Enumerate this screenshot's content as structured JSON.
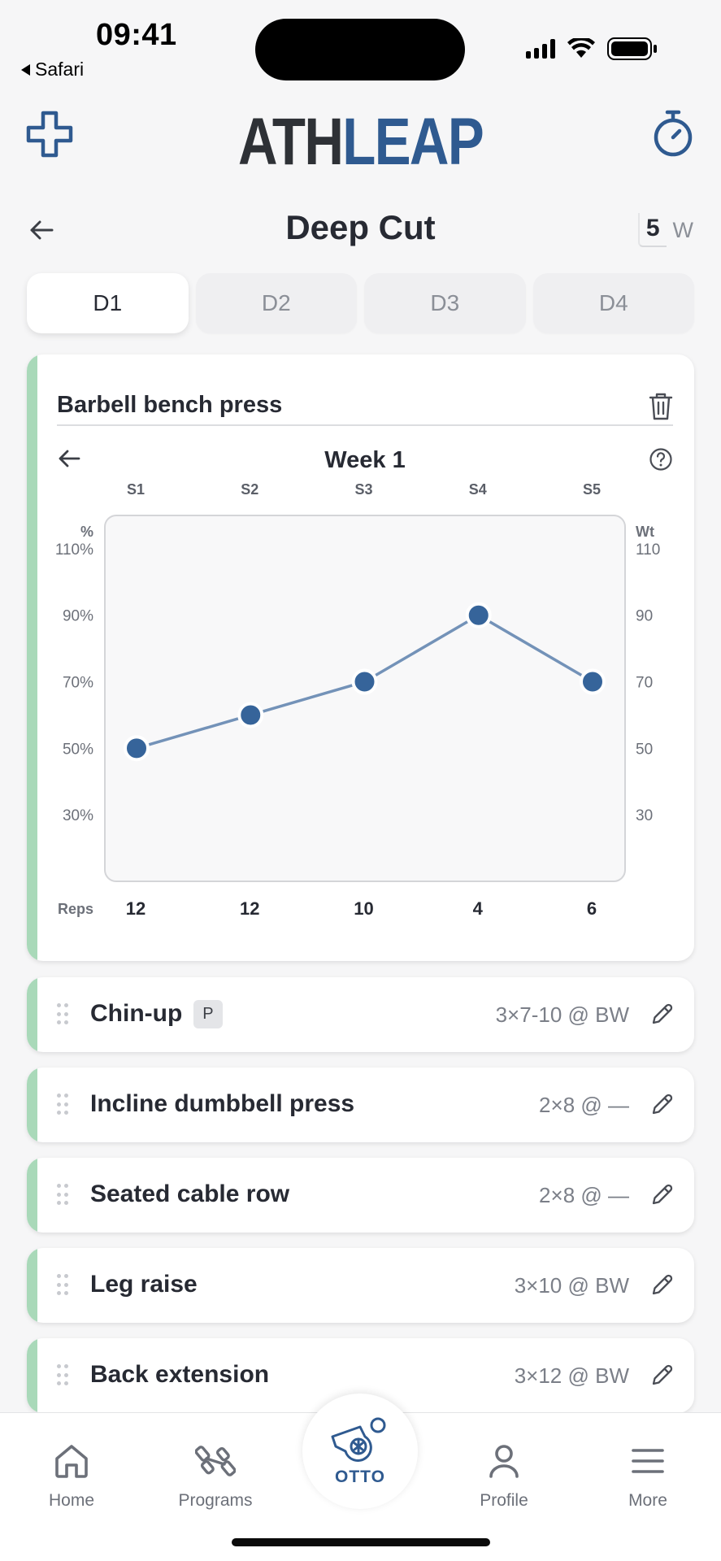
{
  "status_bar": {
    "time": "09:41",
    "back_app": "Safari"
  },
  "header": {
    "logo_part1": "ATH",
    "logo_part2": "LEAP"
  },
  "page": {
    "title": "Deep Cut",
    "weeks_value": "5",
    "weeks_unit": "W"
  },
  "day_tabs": [
    {
      "label": "D1",
      "active": true
    },
    {
      "label": "D2",
      "active": false
    },
    {
      "label": "D3",
      "active": false
    },
    {
      "label": "D4",
      "active": false
    }
  ],
  "expanded_exercise": {
    "name": "Barbell bench press",
    "week_label": "Week 1"
  },
  "chart_data": {
    "type": "line",
    "categories": [
      "S1",
      "S2",
      "S3",
      "S4",
      "S5"
    ],
    "series": [
      {
        "values": [
          50,
          60,
          70,
          90,
          70
        ]
      }
    ],
    "reps_label": "Reps",
    "reps": [
      "12",
      "12",
      "10",
      "4",
      "6"
    ],
    "left_axis_unit": "%",
    "left_ticks": [
      "110%",
      "90%",
      "70%",
      "50%",
      "30%"
    ],
    "right_axis_unit": "Wt",
    "right_ticks": [
      "110",
      "90",
      "70",
      "50",
      "30"
    ],
    "ylim": [
      10,
      120
    ],
    "grid": true,
    "line_color": "#7392b8",
    "point_color": "#36649a"
  },
  "exercises": [
    {
      "name": "Chin-up",
      "badge": "P",
      "scheme": "3×7-10 @ BW"
    },
    {
      "name": "Incline dumbbell press",
      "badge": "",
      "scheme": "2×8 @ —"
    },
    {
      "name": "Seated cable row",
      "badge": "",
      "scheme": "2×8 @ —"
    },
    {
      "name": "Leg raise",
      "badge": "",
      "scheme": "3×10 @ BW"
    },
    {
      "name": "Back extension",
      "badge": "",
      "scheme": "3×12 @ BW"
    }
  ],
  "bottom_nav": {
    "home": "Home",
    "programs": "Programs",
    "otto": "OTTO",
    "profile": "Profile",
    "more": "More"
  },
  "colors": {
    "accent": "#2f5a90",
    "stripe": "#a9d9b9",
    "text": "#272a33",
    "muted": "#8b8f97"
  }
}
